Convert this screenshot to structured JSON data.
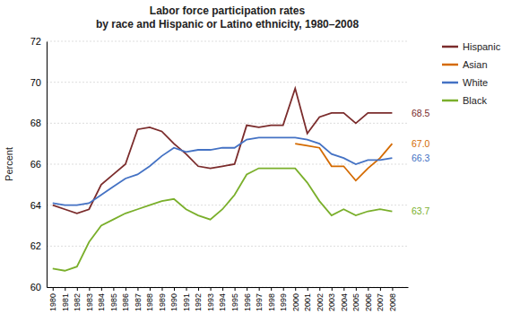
{
  "chart_data": {
    "type": "line",
    "title": "Labor force participation rates\nby race and Hispanic or Latino ethnicity, 1980–2008",
    "ylabel": "Percent",
    "x": [
      1980,
      1981,
      1982,
      1983,
      1984,
      1985,
      1986,
      1987,
      1988,
      1989,
      1990,
      1991,
      1992,
      1993,
      1994,
      1995,
      1996,
      1997,
      1998,
      1999,
      2000,
      2001,
      2002,
      2003,
      2004,
      2005,
      2006,
      2007,
      2008
    ],
    "series": [
      {
        "name": "Hispanic",
        "color": "#7B2C2C",
        "values": [
          64.0,
          63.8,
          63.6,
          63.8,
          65.0,
          65.5,
          66.0,
          67.7,
          67.8,
          67.6,
          67.0,
          66.5,
          65.9,
          65.8,
          65.9,
          66.0,
          67.9,
          67.8,
          67.9,
          67.9,
          69.7,
          67.5,
          68.3,
          68.5,
          68.5,
          68.0,
          68.5,
          68.5,
          68.5
        ]
      },
      {
        "name": "Asian",
        "color": "#D46A00",
        "values": [
          null,
          null,
          null,
          null,
          null,
          null,
          null,
          null,
          null,
          null,
          null,
          null,
          null,
          null,
          null,
          null,
          null,
          null,
          null,
          null,
          67.0,
          66.9,
          66.8,
          65.9,
          65.9,
          65.2,
          65.8,
          66.3,
          67.0
        ]
      },
      {
        "name": "White",
        "color": "#4472C4",
        "values": [
          64.1,
          64.0,
          64.0,
          64.1,
          64.5,
          64.9,
          65.3,
          65.5,
          65.9,
          66.4,
          66.8,
          66.6,
          66.7,
          66.7,
          66.8,
          66.8,
          67.2,
          67.3,
          67.3,
          67.3,
          67.3,
          67.2,
          67.0,
          66.5,
          66.3,
          66.0,
          66.2,
          66.2,
          66.3
        ]
      },
      {
        "name": "Black",
        "color": "#7AAF2B",
        "values": [
          60.9,
          60.8,
          61.0,
          62.2,
          63.0,
          63.3,
          63.6,
          63.8,
          64.0,
          64.2,
          64.3,
          63.8,
          63.5,
          63.3,
          63.8,
          64.5,
          65.5,
          65.8,
          65.8,
          65.8,
          65.8,
          65.1,
          64.2,
          63.5,
          63.8,
          63.5,
          63.7,
          63.8,
          63.7
        ]
      }
    ],
    "xlim": [
      1979.5,
      2009.3
    ],
    "xticks": [
      1980,
      1981,
      1982,
      1983,
      1984,
      1985,
      1986,
      1987,
      1988,
      1989,
      1990,
      1991,
      1992,
      1993,
      1994,
      1995,
      1996,
      1997,
      1998,
      1999,
      2000,
      2001,
      2002,
      2003,
      2004,
      2005,
      2006,
      2007,
      2008
    ],
    "ylim": [
      60,
      72
    ],
    "yticks": [
      60,
      62,
      64,
      66,
      68,
      70,
      72
    ],
    "grid": true,
    "legend": "right",
    "annotations": [
      {
        "text": "68.5",
        "x": 2008,
        "y": 68.5,
        "color": "#7B2C2C"
      },
      {
        "text": "67.0",
        "x": 2008,
        "y": 67.0,
        "color": "#D46A00"
      },
      {
        "text": "66.3",
        "x": 2008,
        "y": 66.3,
        "color": "#4472C4"
      },
      {
        "text": "63.7",
        "x": 2008,
        "y": 63.7,
        "color": "#7AAF2B"
      }
    ]
  }
}
